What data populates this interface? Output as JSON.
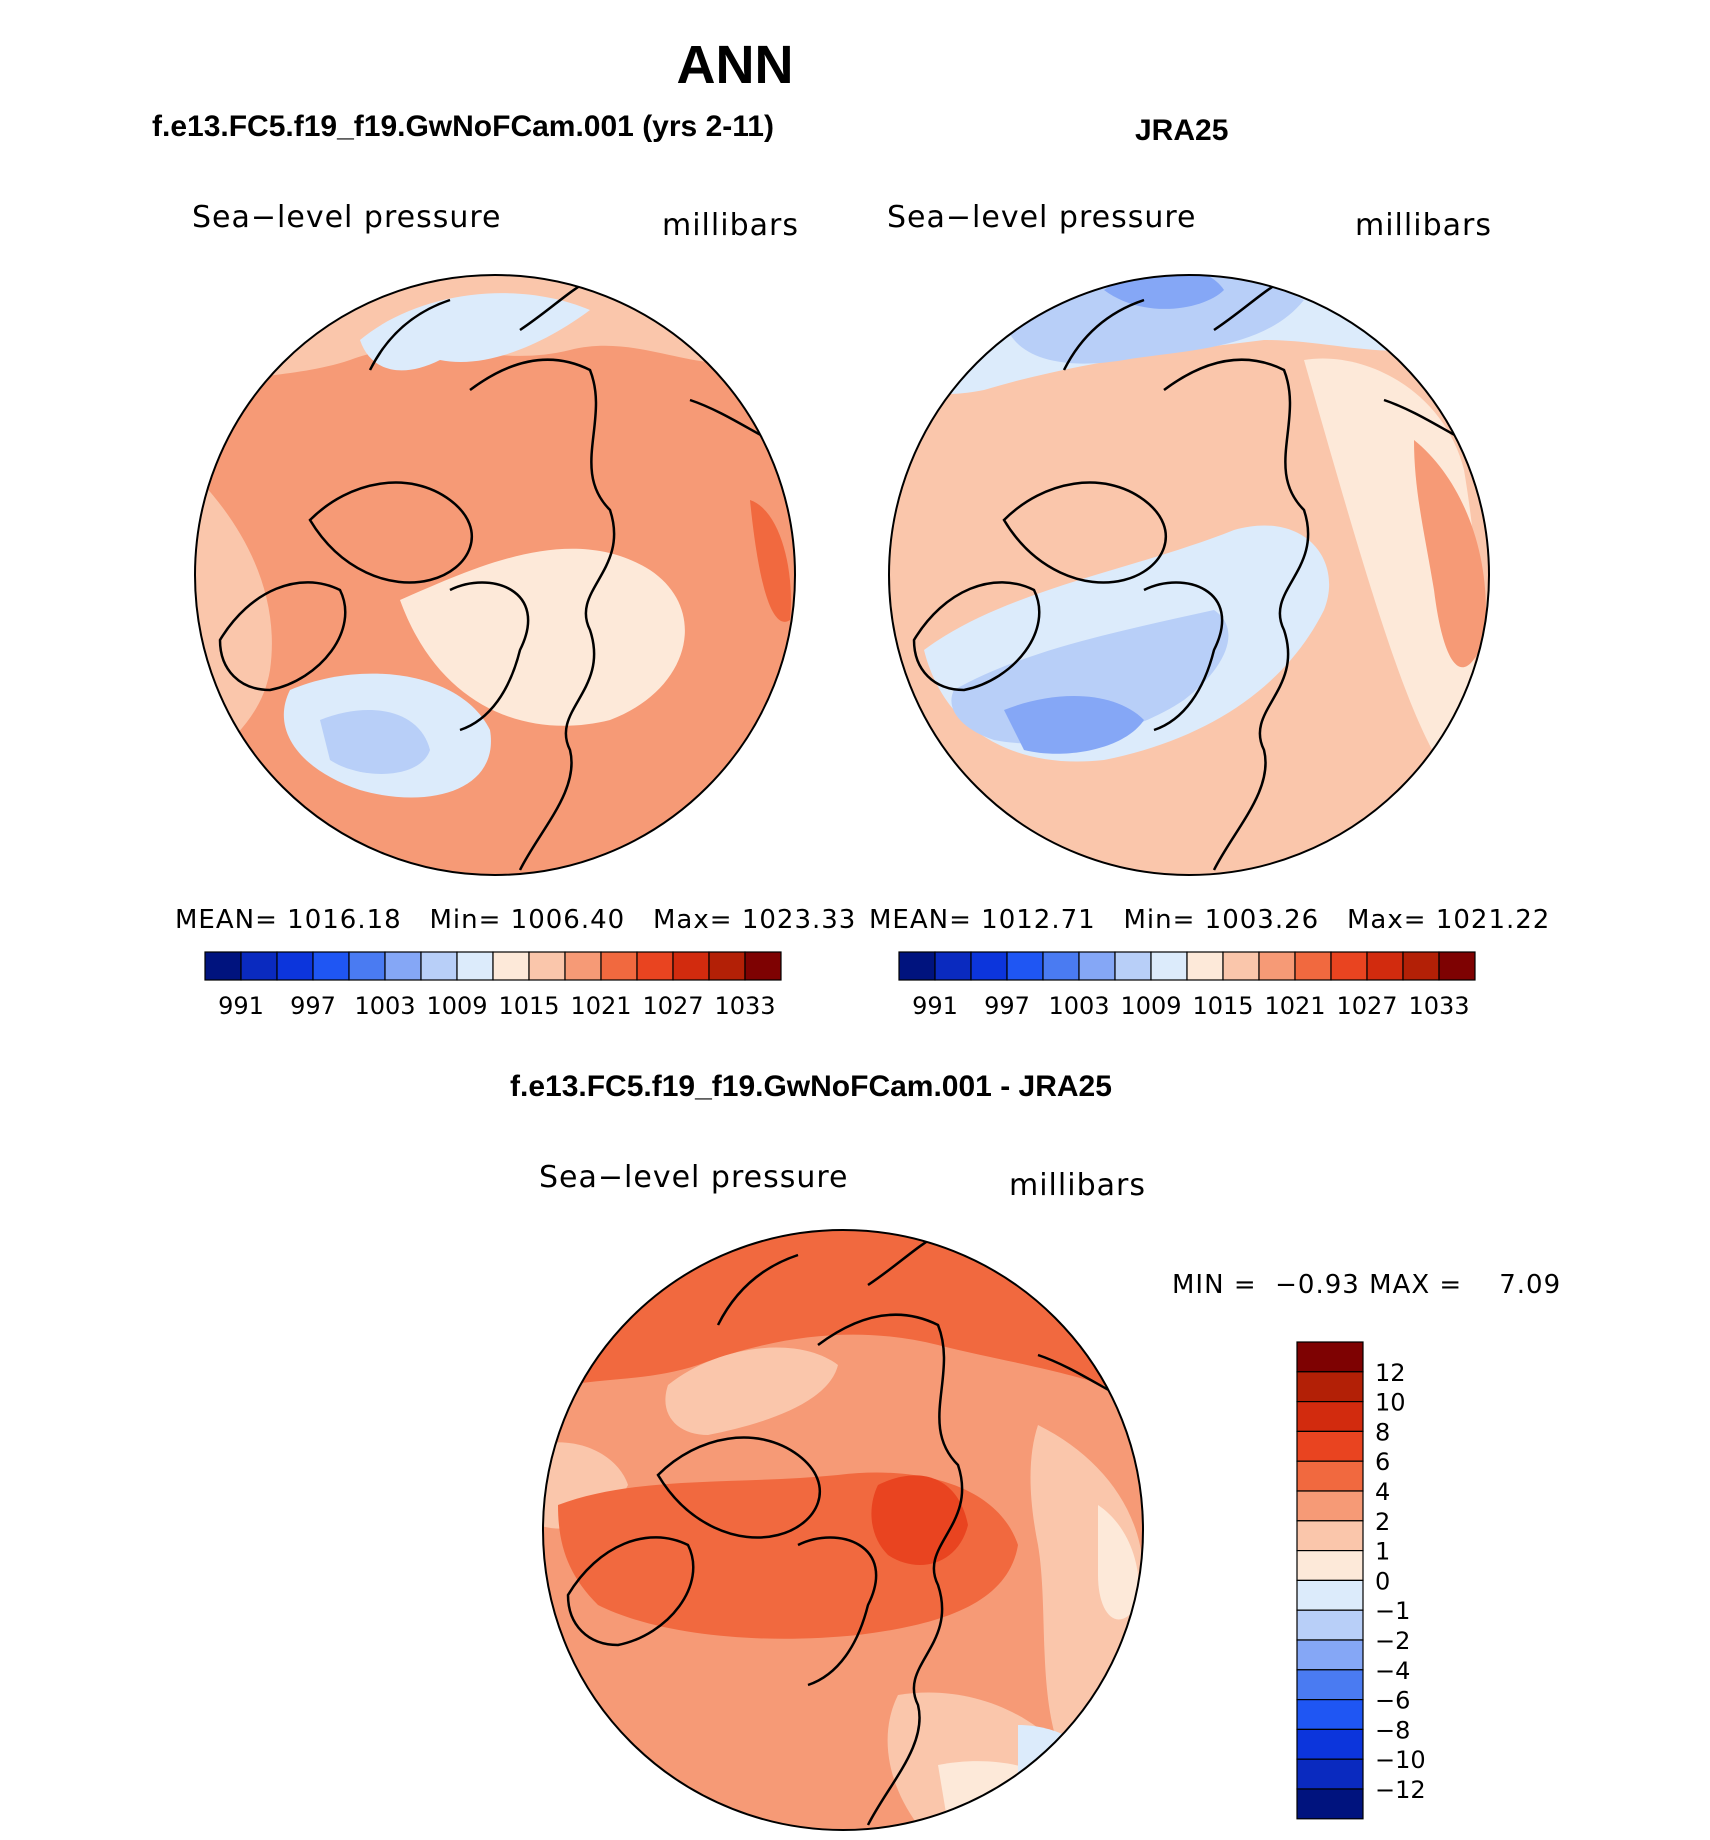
{
  "page": {
    "title": "ANN"
  },
  "chart_data": [
    {
      "type": "contour-map",
      "panel_title": "f.e13.FC5.f19_f19.GwNoFCam.001 (yrs 2-11)",
      "field_label": "Sea−level pressure",
      "units_label": "millibars",
      "stats": {
        "mean_label": "MEAN=",
        "mean": "1016.18",
        "min_label": "Min=",
        "min": "1006.40",
        "max_label": "Max=",
        "max": "1023.33"
      },
      "colorbar": {
        "ticks": [
          "991",
          "997",
          "1003",
          "1009",
          "1015",
          "1021",
          "1027",
          "1033"
        ],
        "colors": [
          "#00137e",
          "#0a2abf",
          "#0c35dc",
          "#1f56f3",
          "#4a7bf2",
          "#85a7f6",
          "#b8cff8",
          "#dcebfb",
          "#fde9d9",
          "#fac6ab",
          "#f69a76",
          "#f1693f",
          "#e94420",
          "#d22b0e",
          "#b32006",
          "#7e0202"
        ]
      }
    },
    {
      "type": "contour-map",
      "panel_title": "JRA25",
      "field_label": "Sea−level pressure",
      "units_label": "millibars",
      "stats": {
        "mean_label": "MEAN=",
        "mean": "1012.71",
        "min_label": "Min=",
        "min": "1003.26",
        "max_label": "Max=",
        "max": "1021.22"
      },
      "colorbar": {
        "ticks": [
          "991",
          "997",
          "1003",
          "1009",
          "1015",
          "1021",
          "1027",
          "1033"
        ],
        "colors": [
          "#00137e",
          "#0a2abf",
          "#0c35dc",
          "#1f56f3",
          "#4a7bf2",
          "#85a7f6",
          "#b8cff8",
          "#dcebfb",
          "#fde9d9",
          "#fac6ab",
          "#f69a76",
          "#f1693f",
          "#e94420",
          "#d22b0e",
          "#b32006",
          "#7e0202"
        ]
      }
    },
    {
      "type": "contour-map",
      "panel_title": "f.e13.FC5.f19_f19.GwNoFCam.001 - JRA25",
      "field_label": "Sea−level pressure",
      "units_label": "millibars",
      "stats": {
        "min_label": "MIN =",
        "min": "−0.93",
        "max_label": "MAX =",
        "max": "7.09"
      },
      "colorbar": {
        "ticks": [
          "12",
          "10",
          "8",
          "6",
          "4",
          "2",
          "1",
          "0",
          "−1",
          "−2",
          "−4",
          "−6",
          "−8",
          "−10",
          "−12"
        ],
        "colors": [
          "#7e0202",
          "#b32006",
          "#d22b0e",
          "#e94420",
          "#f1693f",
          "#f69a76",
          "#fac6ab",
          "#fde9d9",
          "#dcebfb",
          "#b8cff8",
          "#85a7f6",
          "#4a7bf2",
          "#1f56f3",
          "#0c35dc",
          "#0a2abf",
          "#00137e"
        ]
      }
    }
  ]
}
